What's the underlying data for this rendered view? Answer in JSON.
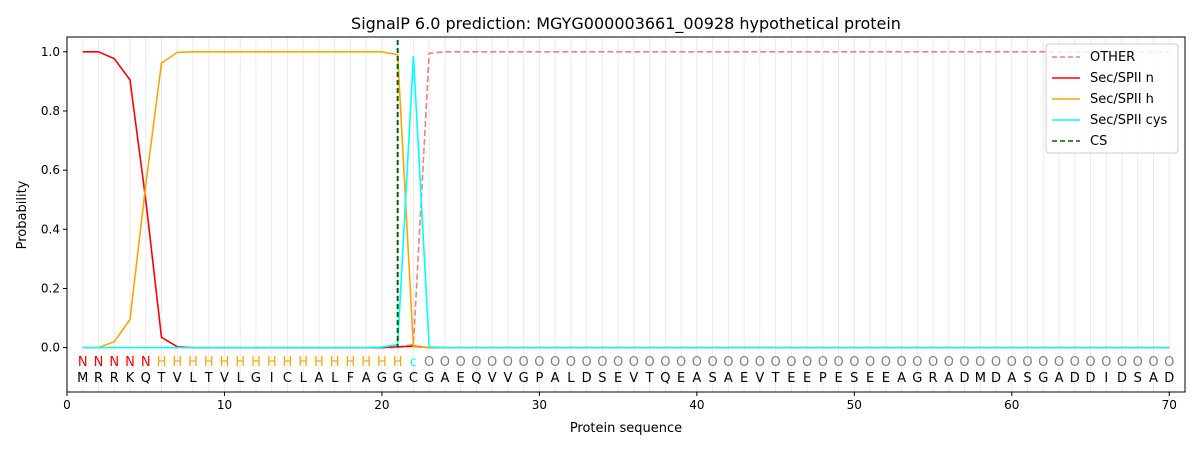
{
  "chart_data": {
    "type": "line",
    "title": "SignalP 6.0 prediction: MGYG000003661_00928 hypothetical protein",
    "xlabel": "Protein sequence",
    "ylabel": "Probability",
    "xlim": [
      0,
      71
    ],
    "ylim": [
      -0.15,
      1.05
    ],
    "xticks": [
      0,
      10,
      20,
      30,
      40,
      50,
      60,
      70
    ],
    "yticks": [
      0.0,
      0.2,
      0.4,
      0.6,
      0.8,
      1.0
    ],
    "ytick_labels": [
      "0.0",
      "0.2",
      "0.4",
      "0.6",
      "0.8",
      "1.0"
    ],
    "legend_position": "top-right",
    "sequence": "MRRKQTVLTVLGICLALFAGGCGAEQVVGPALDSEVTQEASAEVTEEPESEEAGRADMDASGADDIDSAD",
    "labels": "NNNNNHHHHHHHHHHHHHHHHcOOOOOOOOOOOOOOOOOOOOOOOOOOOOOOOOOOOOOOOOOOOOOOOO",
    "label_colors": {
      "N": "#ff0000",
      "H": "#ffa500",
      "c": "#00ffff",
      "O": "#808080"
    },
    "cleavage_site": 21,
    "series": [
      {
        "name": "OTHER",
        "color": "#f08080",
        "dash": true,
        "values": [
          0,
          0,
          0,
          0,
          0,
          0,
          0,
          0,
          0,
          0,
          0,
          0,
          0,
          0,
          0,
          0,
          0,
          0,
          0,
          0,
          0,
          0.01,
          0.995,
          1,
          1,
          1,
          1,
          1,
          1,
          1,
          1,
          1,
          1,
          1,
          1,
          1,
          1,
          1,
          1,
          1,
          1,
          1,
          1,
          1,
          1,
          1,
          1,
          1,
          1,
          1,
          1,
          1,
          1,
          1,
          1,
          1,
          1,
          1,
          1,
          1,
          1,
          1,
          1,
          1,
          1,
          1,
          1,
          1,
          1,
          1
        ]
      },
      {
        "name": "Sec/SPII n",
        "color": "#ff0000",
        "values": [
          1,
          1,
          0.977,
          0.905,
          0.5,
          0.035,
          0.003,
          0,
          0,
          0,
          0,
          0,
          0,
          0,
          0,
          0,
          0,
          0,
          0,
          0,
          0.003,
          0.005,
          0,
          0,
          0,
          0,
          0,
          0,
          0,
          0,
          0,
          0,
          0,
          0,
          0,
          0,
          0,
          0,
          0,
          0,
          0,
          0,
          0,
          0,
          0,
          0,
          0,
          0,
          0,
          0,
          0,
          0,
          0,
          0,
          0,
          0,
          0,
          0,
          0,
          0,
          0,
          0,
          0,
          0,
          0,
          0,
          0,
          0,
          0,
          0
        ]
      },
      {
        "name": "Sec/SPII h",
        "color": "#ffa500",
        "values": [
          0,
          0,
          0.02,
          0.095,
          0.55,
          0.962,
          0.998,
          1,
          1,
          1,
          1,
          1,
          1,
          1,
          1,
          1,
          1,
          1,
          1,
          1,
          0.99,
          0.003,
          0,
          0,
          0,
          0,
          0,
          0,
          0,
          0,
          0,
          0,
          0,
          0,
          0,
          0,
          0,
          0,
          0,
          0,
          0,
          0,
          0,
          0,
          0,
          0,
          0,
          0,
          0,
          0,
          0,
          0,
          0,
          0,
          0,
          0,
          0,
          0,
          0,
          0,
          0,
          0,
          0,
          0,
          0,
          0,
          0,
          0,
          0,
          0
        ]
      },
      {
        "name": "Sec/SPII cys",
        "color": "#00ffff",
        "values": [
          0,
          0,
          0,
          0,
          0,
          0,
          0,
          0,
          0,
          0,
          0,
          0,
          0,
          0,
          0,
          0,
          0,
          0,
          0,
          0.002,
          0.01,
          0.985,
          0.003,
          0,
          0,
          0,
          0,
          0,
          0,
          0,
          0,
          0,
          0,
          0,
          0,
          0,
          0,
          0,
          0,
          0,
          0,
          0,
          0,
          0,
          0,
          0,
          0,
          0,
          0,
          0,
          0,
          0,
          0,
          0,
          0,
          0,
          0,
          0,
          0,
          0,
          0,
          0,
          0,
          0,
          0,
          0,
          0,
          0,
          0,
          0
        ]
      },
      {
        "name": "CS",
        "color": "#006400",
        "dash": true,
        "vertical": true
      }
    ]
  }
}
